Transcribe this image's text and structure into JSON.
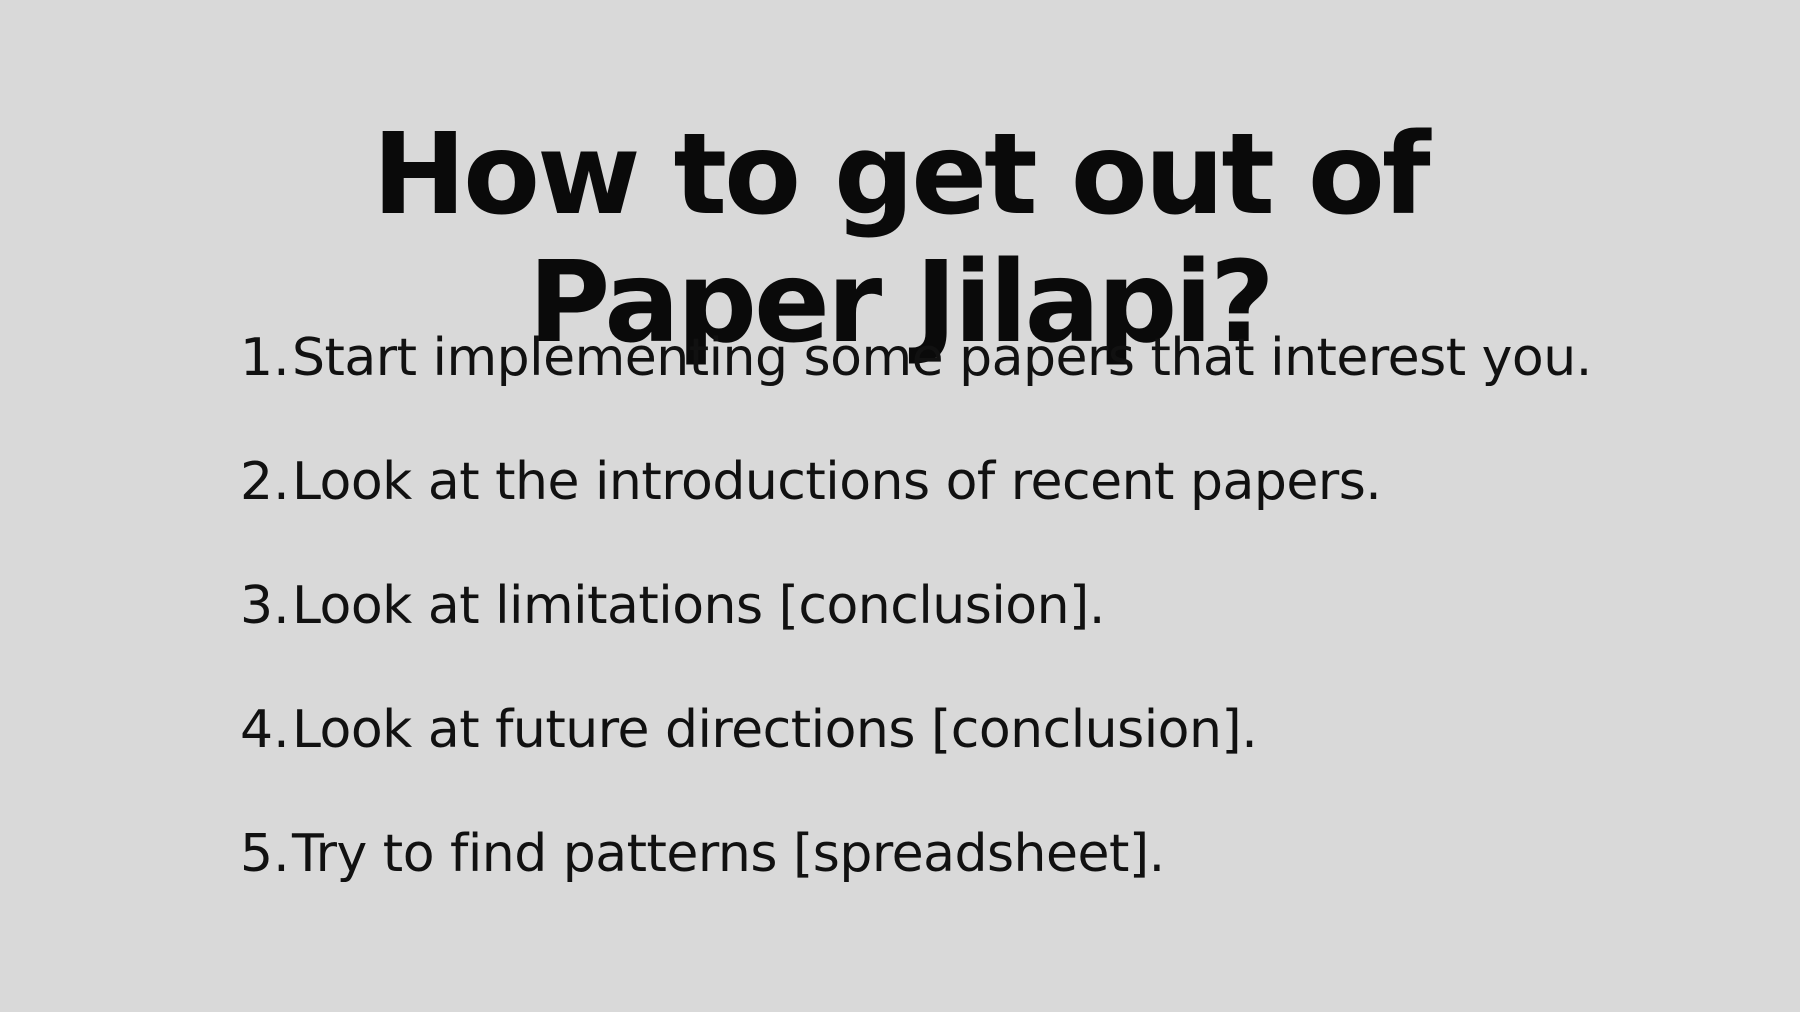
{
  "slide": {
    "title_lines": [
      "How to get out of",
      "Paper Jilapi?"
    ],
    "items": [
      {
        "number": "1.",
        "text": "Start implementing some papers that interest you."
      },
      {
        "number": "2.",
        "text": "Look at the introductions of recent papers."
      },
      {
        "number": "3.",
        "text": "Look at limitations [conclusion]."
      },
      {
        "number": "4.",
        "text": "Look at future directions [conclusion]."
      },
      {
        "number": "5.",
        "text": "Try to find patterns [spreadsheet]."
      }
    ],
    "colors": {
      "background": "#d9d9d9",
      "text": "#111111"
    }
  }
}
